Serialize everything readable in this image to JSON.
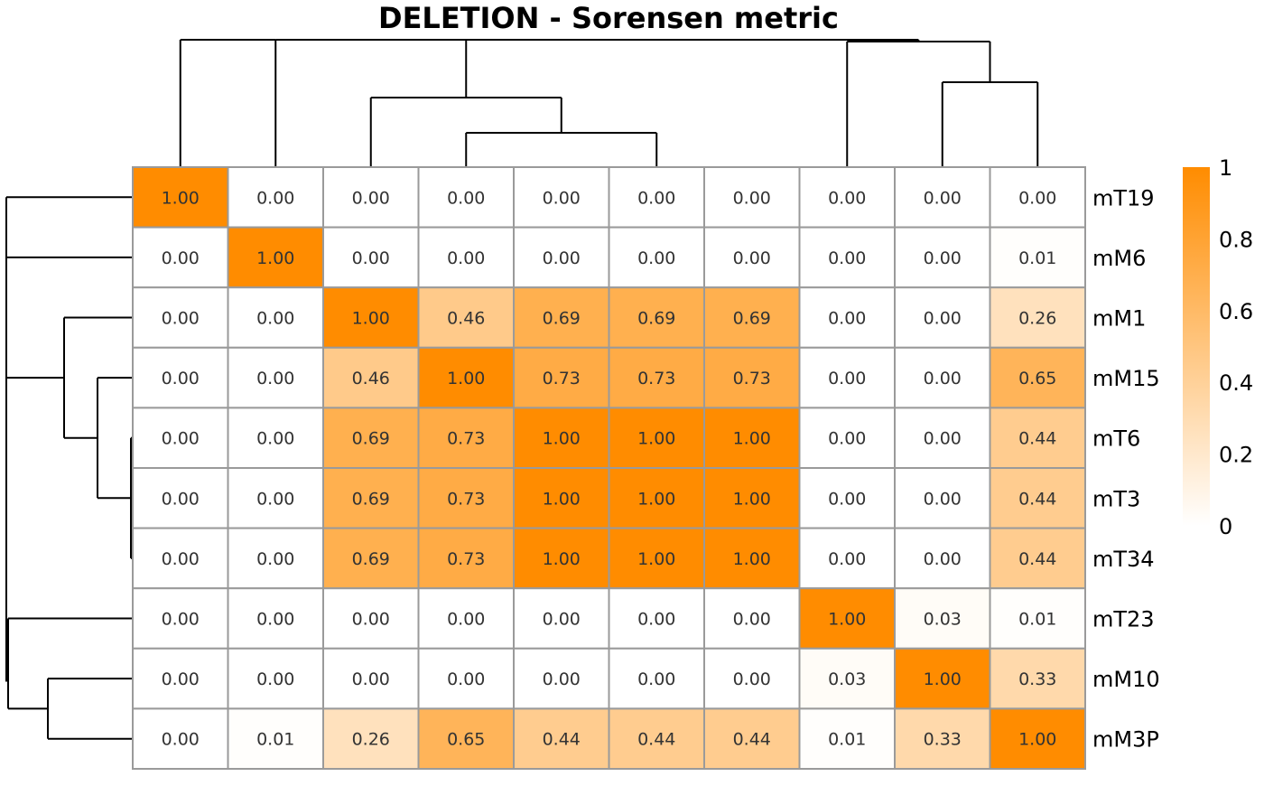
{
  "chart_data": {
    "type": "heatmap",
    "title": "DELETION - Sorensen metric",
    "row_labels": [
      "mT19",
      "mM6",
      "mM1",
      "mM15",
      "mT6",
      "mT3",
      "mT34",
      "mT23",
      "mM10",
      "mM3P"
    ],
    "values": [
      [
        1.0,
        0.0,
        0.0,
        0.0,
        0.0,
        0.0,
        0.0,
        0.0,
        0.0,
        0.0
      ],
      [
        0.0,
        1.0,
        0.0,
        0.0,
        0.0,
        0.0,
        0.0,
        0.0,
        0.0,
        0.01
      ],
      [
        0.0,
        0.0,
        1.0,
        0.46,
        0.69,
        0.69,
        0.69,
        0.0,
        0.0,
        0.26
      ],
      [
        0.0,
        0.0,
        0.46,
        1.0,
        0.73,
        0.73,
        0.73,
        0.0,
        0.0,
        0.65
      ],
      [
        0.0,
        0.0,
        0.69,
        0.73,
        1.0,
        1.0,
        1.0,
        0.0,
        0.0,
        0.44
      ],
      [
        0.0,
        0.0,
        0.69,
        0.73,
        1.0,
        1.0,
        1.0,
        0.0,
        0.0,
        0.44
      ],
      [
        0.0,
        0.0,
        0.69,
        0.73,
        1.0,
        1.0,
        1.0,
        0.0,
        0.0,
        0.44
      ],
      [
        0.0,
        0.0,
        0.0,
        0.0,
        0.0,
        0.0,
        0.0,
        1.0,
        0.03,
        0.01
      ],
      [
        0.0,
        0.0,
        0.0,
        0.0,
        0.0,
        0.0,
        0.0,
        0.03,
        1.0,
        0.33
      ],
      [
        0.0,
        0.01,
        0.26,
        0.65,
        0.44,
        0.44,
        0.44,
        0.01,
        0.33,
        1.0
      ]
    ],
    "value_format_decimals": 2,
    "color_scale": {
      "low": "#ffffff",
      "high": "#ff8c00",
      "range": [
        0,
        1
      ]
    },
    "legend": {
      "position": "right",
      "ticks": [
        {
          "value": 1,
          "label": "1"
        },
        {
          "value": 0.8,
          "label": "0.8"
        },
        {
          "value": 0.6,
          "label": "0.6"
        },
        {
          "value": 0.4,
          "label": "0.4"
        },
        {
          "value": 0.2,
          "label": "0.2"
        },
        {
          "value": 0,
          "label": "0"
        }
      ]
    },
    "dendrograms": [
      "top",
      "left"
    ]
  }
}
